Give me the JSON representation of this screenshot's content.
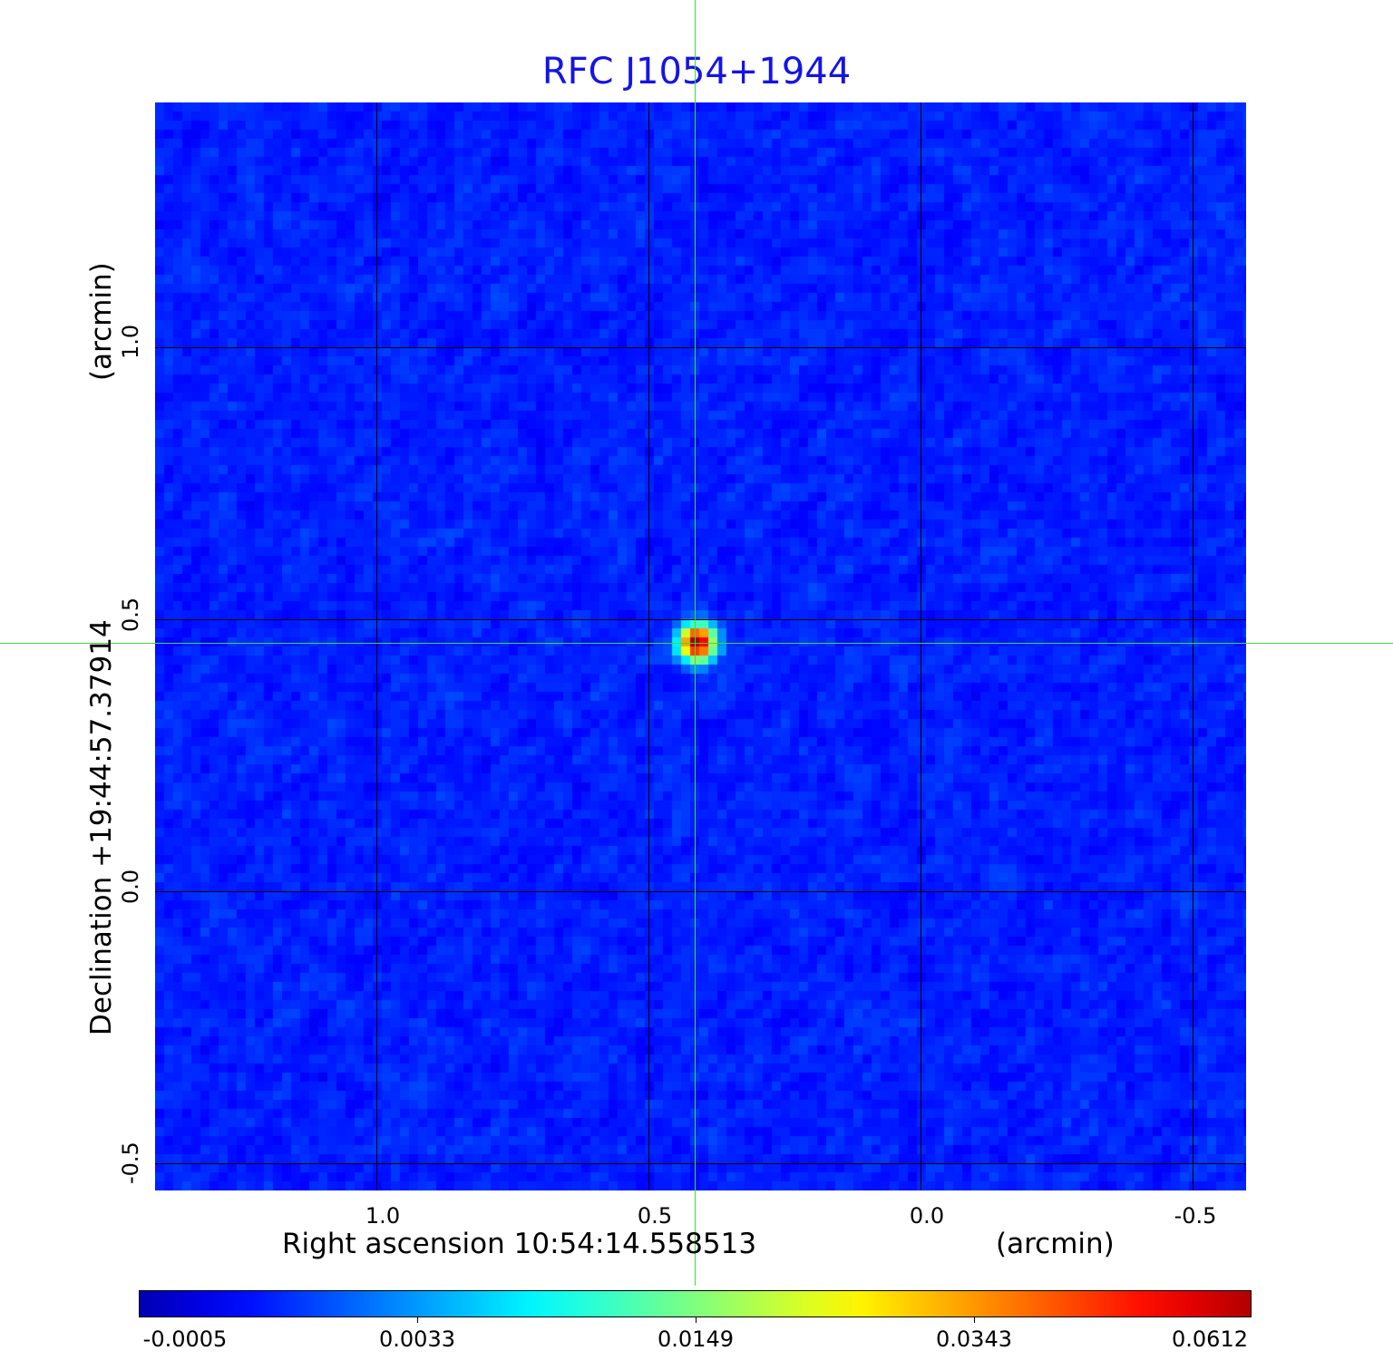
{
  "chart_data": {
    "type": "heatmap",
    "title": "RFC J1054+1944",
    "xlabel": "Right ascension  10:54:14.558513",
    "xunit": "(arcmin)",
    "ylabel": "Declination  +19:44:57.37914",
    "yunit": "(arcmin)",
    "x_ticks": [
      "1.0",
      "0.5",
      "0.0",
      "-0.5"
    ],
    "x_tick_values": [
      1.0,
      0.5,
      0.0,
      -0.5
    ],
    "y_ticks": [
      "1.0",
      "0.5",
      "0.0",
      "-0.5"
    ],
    "y_tick_values": [
      1.0,
      0.5,
      0.0,
      -0.5
    ],
    "xlim": [
      1.41,
      -0.6
    ],
    "ylim": [
      -0.55,
      1.45
    ],
    "grid": true,
    "colormap": "jet",
    "colorbar": {
      "ticks": [
        "-0.0005",
        "0.0033",
        "0.0149",
        "0.0343",
        "0.0612"
      ],
      "range": [
        -0.0005,
        0.0612
      ],
      "placement": "bottom"
    },
    "source_peak": {
      "x": 0.41,
      "y": 0.457,
      "value": 0.0612
    },
    "crosshair": {
      "x": 0.41,
      "y": 0.457,
      "color": "#3ddc3d"
    }
  }
}
